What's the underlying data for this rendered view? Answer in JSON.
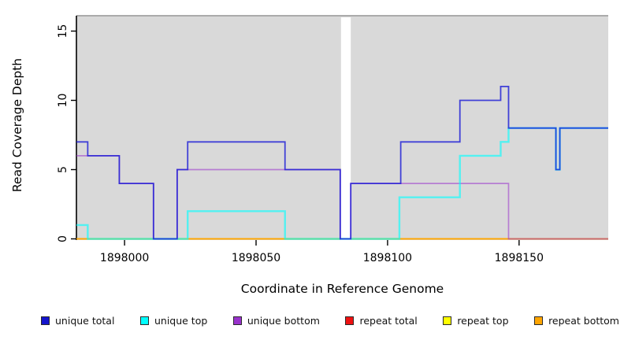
{
  "axes": {
    "xlabel": "Coordinate in Reference Genome",
    "ylabel": "Read Coverage Depth",
    "x_ticks": [
      1898000,
      1898050,
      1898100,
      1898150
    ],
    "y_ticks": [
      0,
      5,
      10,
      15
    ],
    "xlim": [
      1897981.7,
      1898183.9
    ],
    "ylim": [
      0,
      16.2
    ]
  },
  "chart_data": {
    "type": "line",
    "title": "",
    "xlabel": "Coordinate in Reference Genome",
    "ylabel": "Read Coverage Depth",
    "x_ticks": [
      1898000,
      1898050,
      1898100,
      1898150
    ],
    "y_ticks": [
      0,
      5,
      10,
      15
    ],
    "xlim": [
      1897981.7,
      1898183.9
    ],
    "ylim": [
      0,
      16.2
    ],
    "plot_bg": "#D9D9D9",
    "plot_border_top": "#ABABAB",
    "gap_region": {
      "from": 1898082.3,
      "to": 1898086.0
    },
    "series": [
      {
        "name": "repeat total",
        "color": "#CC0000",
        "opacity": 1,
        "width": 1.6,
        "steps": [
          {
            "from": 1897981.7,
            "to": 1898183.9,
            "value": 0
          }
        ]
      },
      {
        "name": "repeat top",
        "color": "#FFFF00",
        "opacity": 1,
        "width": 1.6,
        "steps": [
          {
            "from": 1897981.7,
            "to": 1898183.9,
            "value": 0
          }
        ]
      },
      {
        "name": "repeat bottom",
        "color": "#FFA500",
        "opacity": 1,
        "width": 1.8,
        "steps": [
          {
            "from": 1897981.7,
            "to": 1898183.9,
            "value": 0
          }
        ]
      },
      {
        "name": "unique bottom",
        "color": "#9932CC",
        "opacity": 0.55,
        "width": 1.7,
        "steps": [
          {
            "from": 1897981.7,
            "to": 1897998,
            "value": 6
          },
          {
            "from": 1897998,
            "to": 1898011,
            "value": 4
          },
          {
            "from": 1898011,
            "to": 1898020,
            "value": 0
          },
          {
            "from": 1898020,
            "to": 1898082,
            "value": 5
          },
          {
            "from": 1898082,
            "to": 1898086,
            "value": 0
          },
          {
            "from": 1898086,
            "to": 1898146,
            "value": 4
          },
          {
            "from": 1898146,
            "to": 1898183.9,
            "value": 0
          }
        ]
      },
      {
        "name": "unique top",
        "color": "#00FFFF",
        "opacity": 0.62,
        "width": 2.4,
        "steps": [
          {
            "from": 1897981.7,
            "to": 1897986,
            "value": 1
          },
          {
            "from": 1897986,
            "to": 1898024,
            "value": 0
          },
          {
            "from": 1898024,
            "to": 1898061,
            "value": 2
          },
          {
            "from": 1898061,
            "to": 1898104.5,
            "value": 0
          },
          {
            "from": 1898104.5,
            "to": 1898127.5,
            "value": 3
          },
          {
            "from": 1898127.5,
            "to": 1898143,
            "value": 6
          },
          {
            "from": 1898143,
            "to": 1898146,
            "value": 7
          },
          {
            "from": 1898146,
            "to": 1898164,
            "value": 8
          },
          {
            "from": 1898164,
            "to": 1898165.5,
            "value": 5
          },
          {
            "from": 1898165.5,
            "to": 1898183.9,
            "value": 8
          }
        ]
      },
      {
        "name": "unique total",
        "color": "#1A1AD6",
        "opacity": 0.8,
        "width": 1.8,
        "steps": [
          {
            "from": 1897981.7,
            "to": 1897986,
            "value": 7
          },
          {
            "from": 1897986,
            "to": 1897998,
            "value": 6
          },
          {
            "from": 1897998,
            "to": 1898011,
            "value": 4
          },
          {
            "from": 1898011,
            "to": 1898020,
            "value": 0
          },
          {
            "from": 1898020,
            "to": 1898024,
            "value": 5
          },
          {
            "from": 1898024,
            "to": 1898061,
            "value": 7
          },
          {
            "from": 1898061,
            "to": 1898082,
            "value": 5
          },
          {
            "from": 1898082,
            "to": 1898086,
            "value": 0
          },
          {
            "from": 1898086,
            "to": 1898105,
            "value": 4
          },
          {
            "from": 1898105,
            "to": 1898127.5,
            "value": 7
          },
          {
            "from": 1898127.5,
            "to": 1898143,
            "value": 10
          },
          {
            "from": 1898143,
            "to": 1898146,
            "value": 11
          },
          {
            "from": 1898146,
            "to": 1898164,
            "value": 8
          },
          {
            "from": 1898164,
            "to": 1898165.5,
            "value": 5
          },
          {
            "from": 1898165.5,
            "to": 1898183.9,
            "value": 8
          }
        ]
      }
    ]
  },
  "legend": {
    "items": [
      {
        "label": "unique total",
        "color": "#1414CC"
      },
      {
        "label": "unique top",
        "color": "#00FFFF"
      },
      {
        "label": "unique bottom",
        "color": "#9932CC"
      },
      {
        "label": "repeat total",
        "color": "#EE1111"
      },
      {
        "label": "repeat top",
        "color": "#FFFF00"
      },
      {
        "label": "repeat bottom",
        "color": "#FFA500"
      }
    ]
  }
}
